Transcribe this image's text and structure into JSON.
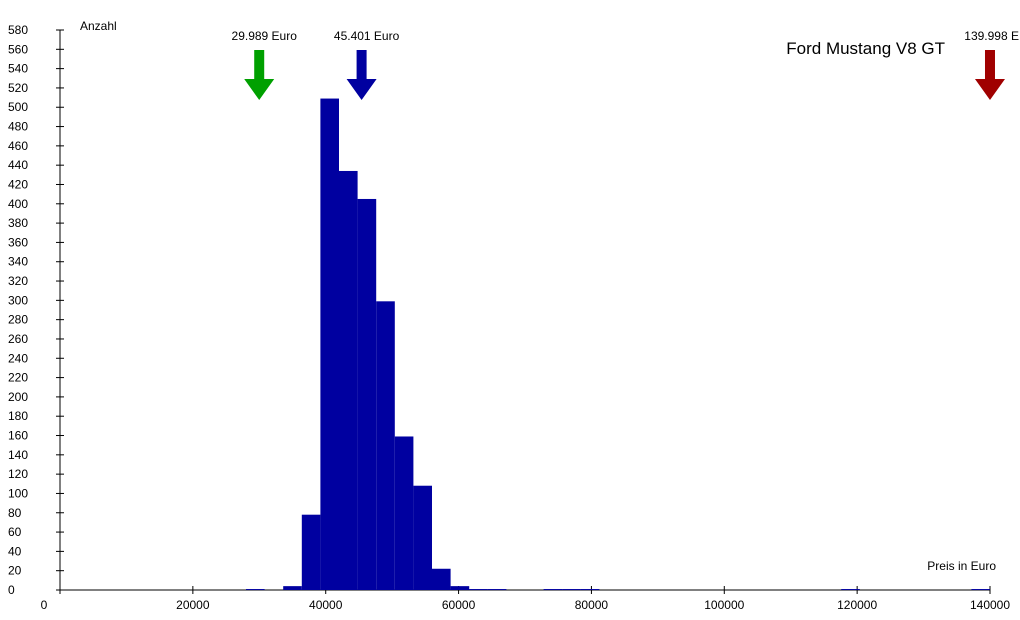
{
  "chart_data": {
    "type": "bar",
    "title": "Ford Mustang V8 GT",
    "xlabel": "Preis in Euro",
    "ylabel": "Anzahl",
    "xlim": [
      0,
      140000
    ],
    "ylim": [
      0,
      580
    ],
    "x_ticks": [
      0,
      20000,
      40000,
      60000,
      80000,
      100000,
      120000,
      140000
    ],
    "y_ticks": [
      0,
      20,
      40,
      60,
      80,
      100,
      120,
      140,
      160,
      180,
      200,
      220,
      240,
      260,
      280,
      300,
      320,
      340,
      360,
      380,
      400,
      420,
      440,
      460,
      480,
      500,
      520,
      540,
      560,
      580
    ],
    "bin_width": 2800,
    "bars_color": "#0000a0",
    "bars": [
      {
        "x_start": 28000,
        "value": 1
      },
      {
        "x_start": 33600,
        "value": 4
      },
      {
        "x_start": 36400,
        "value": 78
      },
      {
        "x_start": 39200,
        "value": 509
      },
      {
        "x_start": 42000,
        "value": 434
      },
      {
        "x_start": 44800,
        "value": 405
      },
      {
        "x_start": 47600,
        "value": 299
      },
      {
        "x_start": 50400,
        "value": 159
      },
      {
        "x_start": 53200,
        "value": 108
      },
      {
        "x_start": 56000,
        "value": 22
      },
      {
        "x_start": 58800,
        "value": 4
      },
      {
        "x_start": 61600,
        "value": 1
      },
      {
        "x_start": 64400,
        "value": 1
      },
      {
        "x_start": 72800,
        "value": 1
      },
      {
        "x_start": 75600,
        "value": 1
      },
      {
        "x_start": 78400,
        "value": 1
      },
      {
        "x_start": 117600,
        "value": 1
      },
      {
        "x_start": 137200,
        "value": 1
      }
    ],
    "markers": [
      {
        "label": "29.989 Euro",
        "value": 29989,
        "color": "#00a000"
      },
      {
        "label": "45.401 Euro",
        "value": 45401,
        "color": "#0000a0"
      },
      {
        "label": "139.998 E",
        "value": 139998,
        "color": "#a00000"
      }
    ],
    "grid": false,
    "legend": "none"
  }
}
